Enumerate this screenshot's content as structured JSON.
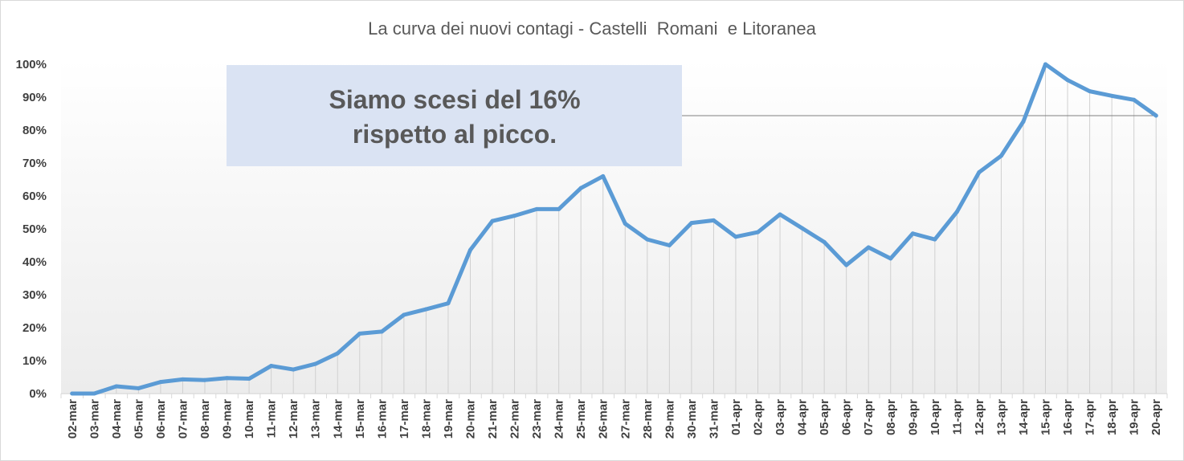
{
  "chart_data": {
    "type": "line",
    "title": "La curva dei nuovi contagi - Castelli  Romani  e Litoranea",
    "xlabel": "",
    "ylabel": "",
    "ylim": [
      0,
      1
    ],
    "yticks": [
      "0%",
      "10%",
      "20%",
      "30%",
      "40%",
      "50%",
      "60%",
      "70%",
      "80%",
      "90%",
      "100%"
    ],
    "grid": false,
    "legend": "none",
    "line_color": "#5b9bd5",
    "annotation_box_color": "#dae3f3",
    "categories": [
      "02-mar",
      "03-mar",
      "04-mar",
      "05-mar",
      "06-mar",
      "07-mar",
      "08-mar",
      "09-mar",
      "10-mar",
      "11-mar",
      "12-mar",
      "13-mar",
      "14-mar",
      "15-mar",
      "16-mar",
      "17-mar",
      "18-mar",
      "19-mar",
      "20-mar",
      "21-mar",
      "22-mar",
      "23-mar",
      "24-mar",
      "25-mar",
      "26-mar",
      "27-mar",
      "28-mar",
      "29-mar",
      "30-mar",
      "31-mar",
      "01-apr",
      "02-apr",
      "03-apr",
      "04-apr",
      "05-apr",
      "06-apr",
      "07-apr",
      "08-apr",
      "09-apr",
      "10-apr",
      "11-apr",
      "12-apr",
      "13-apr",
      "14-apr",
      "15-apr",
      "16-apr",
      "17-apr",
      "18-apr",
      "19-apr",
      "20-apr"
    ],
    "series": [
      {
        "values": [
          0.0,
          0.0,
          0.022,
          0.016,
          0.035,
          0.043,
          0.041,
          0.047,
          0.045,
          0.084,
          0.073,
          0.09,
          0.122,
          0.182,
          0.188,
          0.239,
          0.256,
          0.274,
          0.436,
          0.524,
          0.54,
          0.56,
          0.56,
          0.624,
          0.66,
          0.516,
          0.468,
          0.45,
          0.518,
          0.526,
          0.476,
          0.49,
          0.544,
          0.502,
          0.46,
          0.39,
          0.444,
          0.41,
          0.486,
          0.468,
          0.552,
          0.672,
          0.722,
          0.826,
          1.0,
          0.952,
          0.918,
          0.904,
          0.892,
          0.844
        ]
      }
    ],
    "annotation": {
      "lines": [
        "Siamo scesi del 16%",
        "rispetto al picco."
      ]
    }
  }
}
